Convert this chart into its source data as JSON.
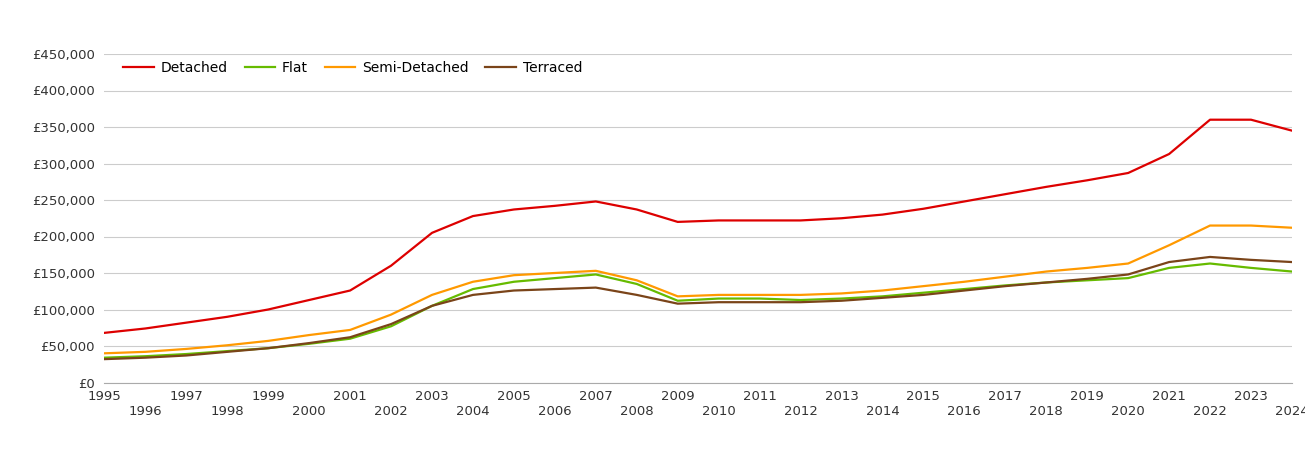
{
  "years": [
    1995,
    1996,
    1997,
    1998,
    1999,
    2000,
    2001,
    2002,
    2003,
    2004,
    2005,
    2006,
    2007,
    2008,
    2009,
    2010,
    2011,
    2012,
    2013,
    2014,
    2015,
    2016,
    2017,
    2018,
    2019,
    2020,
    2021,
    2022,
    2023,
    2024
  ],
  "detached": [
    68000,
    74000,
    82000,
    90000,
    100000,
    113000,
    126000,
    160000,
    205000,
    228000,
    237000,
    242000,
    248000,
    237000,
    220000,
    222000,
    222000,
    222000,
    225000,
    230000,
    238000,
    248000,
    258000,
    268000,
    277000,
    287000,
    313000,
    360000,
    360000,
    345000
  ],
  "flat": [
    34000,
    36000,
    39000,
    43000,
    47000,
    53000,
    60000,
    77000,
    105000,
    128000,
    138000,
    143000,
    148000,
    135000,
    112000,
    115000,
    115000,
    113000,
    115000,
    118000,
    123000,
    128000,
    133000,
    137000,
    140000,
    143000,
    157000,
    163000,
    157000,
    152000
  ],
  "semi_detached": [
    40000,
    42000,
    46000,
    51000,
    57000,
    65000,
    72000,
    93000,
    120000,
    138000,
    147000,
    150000,
    153000,
    140000,
    118000,
    120000,
    120000,
    120000,
    122000,
    126000,
    132000,
    138000,
    145000,
    152000,
    157000,
    163000,
    188000,
    215000,
    215000,
    212000
  ],
  "terraced": [
    32000,
    34000,
    37000,
    42000,
    47000,
    54000,
    62000,
    80000,
    105000,
    120000,
    126000,
    128000,
    130000,
    120000,
    108000,
    110000,
    110000,
    110000,
    112000,
    116000,
    120000,
    126000,
    132000,
    137000,
    142000,
    148000,
    165000,
    172000,
    168000,
    165000
  ],
  "detached_color": "#dd0000",
  "flat_color": "#66bb00",
  "semi_detached_color": "#ff9900",
  "terraced_color": "#7a4419",
  "background_color": "#ffffff",
  "grid_color": "#cccccc",
  "ylim": [
    0,
    420000
  ],
  "figsize": [
    13.05,
    4.5
  ],
  "dpi": 100
}
